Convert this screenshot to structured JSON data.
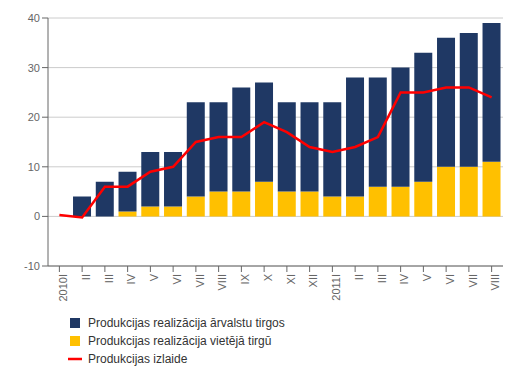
{
  "chart_data": {
    "type": "bar",
    "stacked": true,
    "categories": [
      "2010I",
      "II",
      "III",
      "IV",
      "V",
      "VI",
      "VII",
      "VIII",
      "IX",
      "X",
      "XI",
      "XII",
      "2011I",
      "II",
      "III",
      "IV",
      "V",
      "VI",
      "VII",
      "VIII"
    ],
    "series": [
      {
        "name": "Produkcijas realizācija ārvalstu tirgos",
        "type": "bar",
        "color": "#1F3864",
        "values": [
          0,
          4,
          7,
          8,
          11,
          11,
          19,
          18,
          21,
          20,
          18,
          18,
          19,
          24,
          22,
          24,
          26,
          26,
          27,
          28
        ]
      },
      {
        "name": "Produkcijas realizācija vietējā tirgū",
        "type": "bar",
        "color": "#FFC000",
        "values": [
          0,
          0,
          0,
          1,
          2,
          2,
          4,
          5,
          5,
          7,
          5,
          5,
          4,
          4,
          6,
          6,
          7,
          10,
          10,
          11
        ]
      },
      {
        "name": "Produkcijas izlaide",
        "type": "line",
        "color": "#FF0000",
        "values": [
          0.3,
          -0.2,
          6,
          6,
          9,
          10,
          15,
          16,
          16,
          19,
          17,
          14,
          13,
          14,
          16,
          25,
          25,
          26,
          26,
          24
        ]
      }
    ],
    "ylim": [
      -10,
      40
    ],
    "yticks": [
      -10,
      0,
      10,
      20,
      30,
      40
    ],
    "grid": true,
    "legend": "bottom"
  }
}
